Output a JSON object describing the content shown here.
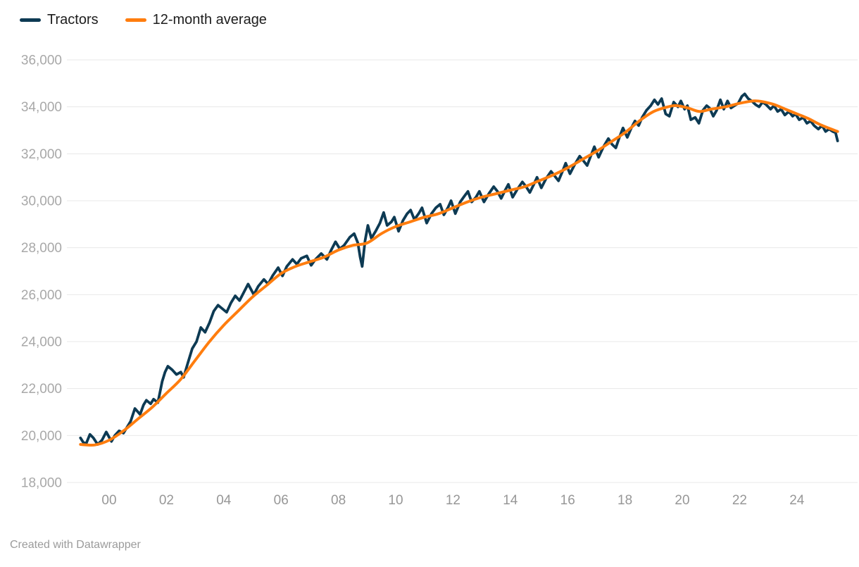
{
  "credit": "Created with Datawrapper",
  "chart_data": {
    "type": "line",
    "title": "",
    "xlabel": "",
    "ylabel": "",
    "legend_position": "top-left",
    "grid": "horizontal",
    "x_axis": {
      "tick_labels": [
        "00",
        "02",
        "04",
        "06",
        "08",
        "10",
        "12",
        "14",
        "16",
        "18",
        "20",
        "22",
        "24"
      ],
      "tick_years": [
        2000,
        2002,
        2004,
        2006,
        2008,
        2010,
        2012,
        2014,
        2016,
        2018,
        2020,
        2022,
        2024
      ],
      "range_years": [
        1999.0,
        2025.45
      ]
    },
    "y_axis": {
      "tick_labels": [
        "36,000",
        "34,000",
        "32,000",
        "30,000",
        "28,000",
        "26,000",
        "24,000",
        "22,000",
        "20,000",
        "18,000"
      ],
      "tick_values": [
        36000,
        34000,
        32000,
        30000,
        28000,
        26000,
        24000,
        22000,
        20000,
        18000
      ],
      "range": [
        18000,
        36000
      ]
    },
    "series": [
      {
        "name": "Tractors",
        "color": "#0d3a53",
        "stroke_width": 3.8,
        "smooth": false,
        "points": [
          [
            1999.0,
            19900
          ],
          [
            1999.1,
            19700
          ],
          [
            1999.2,
            19660
          ],
          [
            1999.33,
            20050
          ],
          [
            1999.45,
            19900
          ],
          [
            1999.6,
            19620
          ],
          [
            1999.75,
            19800
          ],
          [
            1999.9,
            20150
          ],
          [
            2000.08,
            19750
          ],
          [
            2000.2,
            20000
          ],
          [
            2000.35,
            20200
          ],
          [
            2000.5,
            20100
          ],
          [
            2000.6,
            20300
          ],
          [
            2000.75,
            20600
          ],
          [
            2000.9,
            21150
          ],
          [
            2001.08,
            20900
          ],
          [
            2001.2,
            21300
          ],
          [
            2001.3,
            21500
          ],
          [
            2001.45,
            21350
          ],
          [
            2001.55,
            21550
          ],
          [
            2001.7,
            21400
          ],
          [
            2001.85,
            22300
          ],
          [
            2001.95,
            22700
          ],
          [
            2002.05,
            22950
          ],
          [
            2002.2,
            22800
          ],
          [
            2002.35,
            22600
          ],
          [
            2002.5,
            22700
          ],
          [
            2002.6,
            22480
          ],
          [
            2002.75,
            23100
          ],
          [
            2002.9,
            23700
          ],
          [
            2003.05,
            24000
          ],
          [
            2003.2,
            24600
          ],
          [
            2003.35,
            24400
          ],
          [
            2003.5,
            24800
          ],
          [
            2003.65,
            25300
          ],
          [
            2003.8,
            25550
          ],
          [
            2003.95,
            25400
          ],
          [
            2004.1,
            25250
          ],
          [
            2004.25,
            25650
          ],
          [
            2004.4,
            25950
          ],
          [
            2004.55,
            25750
          ],
          [
            2004.7,
            26100
          ],
          [
            2004.85,
            26450
          ],
          [
            2005.05,
            26000
          ],
          [
            2005.2,
            26350
          ],
          [
            2005.4,
            26650
          ],
          [
            2005.55,
            26450
          ],
          [
            2005.7,
            26800
          ],
          [
            2005.9,
            27150
          ],
          [
            2006.05,
            26800
          ],
          [
            2006.2,
            27200
          ],
          [
            2006.4,
            27500
          ],
          [
            2006.55,
            27300
          ],
          [
            2006.7,
            27550
          ],
          [
            2006.9,
            27650
          ],
          [
            2007.05,
            27250
          ],
          [
            2007.2,
            27500
          ],
          [
            2007.4,
            27750
          ],
          [
            2007.6,
            27500
          ],
          [
            2007.75,
            27900
          ],
          [
            2007.9,
            28250
          ],
          [
            2008.05,
            27950
          ],
          [
            2008.2,
            28100
          ],
          [
            2008.4,
            28450
          ],
          [
            2008.55,
            28600
          ],
          [
            2008.68,
            28200
          ],
          [
            2008.76,
            27600
          ],
          [
            2008.83,
            27200
          ],
          [
            2008.93,
            28300
          ],
          [
            2009.03,
            28950
          ],
          [
            2009.15,
            28400
          ],
          [
            2009.3,
            28700
          ],
          [
            2009.45,
            29050
          ],
          [
            2009.58,
            29500
          ],
          [
            2009.7,
            28950
          ],
          [
            2009.85,
            29100
          ],
          [
            2009.95,
            29300
          ],
          [
            2010.1,
            28700
          ],
          [
            2010.25,
            29150
          ],
          [
            2010.4,
            29450
          ],
          [
            2010.52,
            29600
          ],
          [
            2010.65,
            29200
          ],
          [
            2010.8,
            29450
          ],
          [
            2010.92,
            29700
          ],
          [
            2011.08,
            29050
          ],
          [
            2011.25,
            29450
          ],
          [
            2011.4,
            29700
          ],
          [
            2011.55,
            29850
          ],
          [
            2011.68,
            29400
          ],
          [
            2011.82,
            29700
          ],
          [
            2011.93,
            30000
          ],
          [
            2012.08,
            29450
          ],
          [
            2012.25,
            29950
          ],
          [
            2012.4,
            30200
          ],
          [
            2012.52,
            30400
          ],
          [
            2012.65,
            29950
          ],
          [
            2012.8,
            30150
          ],
          [
            2012.92,
            30400
          ],
          [
            2013.08,
            29950
          ],
          [
            2013.25,
            30300
          ],
          [
            2013.42,
            30600
          ],
          [
            2013.55,
            30400
          ],
          [
            2013.68,
            30100
          ],
          [
            2013.82,
            30450
          ],
          [
            2013.93,
            30700
          ],
          [
            2014.08,
            30150
          ],
          [
            2014.25,
            30500
          ],
          [
            2014.42,
            30800
          ],
          [
            2014.55,
            30600
          ],
          [
            2014.68,
            30350
          ],
          [
            2014.82,
            30700
          ],
          [
            2014.93,
            31000
          ],
          [
            2015.08,
            30550
          ],
          [
            2015.25,
            30950
          ],
          [
            2015.42,
            31250
          ],
          [
            2015.55,
            31050
          ],
          [
            2015.68,
            30850
          ],
          [
            2015.82,
            31250
          ],
          [
            2015.93,
            31600
          ],
          [
            2016.08,
            31150
          ],
          [
            2016.25,
            31550
          ],
          [
            2016.42,
            31900
          ],
          [
            2016.55,
            31700
          ],
          [
            2016.68,
            31500
          ],
          [
            2016.82,
            31950
          ],
          [
            2016.93,
            32300
          ],
          [
            2017.08,
            31850
          ],
          [
            2017.25,
            32300
          ],
          [
            2017.42,
            32650
          ],
          [
            2017.55,
            32400
          ],
          [
            2017.68,
            32250
          ],
          [
            2017.82,
            32750
          ],
          [
            2017.93,
            33100
          ],
          [
            2018.08,
            32700
          ],
          [
            2018.22,
            33100
          ],
          [
            2018.35,
            33400
          ],
          [
            2018.48,
            33200
          ],
          [
            2018.6,
            33550
          ],
          [
            2018.75,
            33850
          ],
          [
            2018.9,
            34050
          ],
          [
            2019.03,
            34300
          ],
          [
            2019.15,
            34100
          ],
          [
            2019.28,
            34350
          ],
          [
            2019.42,
            33700
          ],
          [
            2019.55,
            33600
          ],
          [
            2019.7,
            34200
          ],
          [
            2019.85,
            34000
          ],
          [
            2019.95,
            34250
          ],
          [
            2020.08,
            33900
          ],
          [
            2020.18,
            34050
          ],
          [
            2020.3,
            33450
          ],
          [
            2020.45,
            33550
          ],
          [
            2020.58,
            33300
          ],
          [
            2020.72,
            33850
          ],
          [
            2020.85,
            34050
          ],
          [
            2020.95,
            33950
          ],
          [
            2021.08,
            33600
          ],
          [
            2021.2,
            33850
          ],
          [
            2021.33,
            34300
          ],
          [
            2021.45,
            33900
          ],
          [
            2021.58,
            34250
          ],
          [
            2021.7,
            33950
          ],
          [
            2021.82,
            34050
          ],
          [
            2021.95,
            34150
          ],
          [
            2022.08,
            34450
          ],
          [
            2022.18,
            34550
          ],
          [
            2022.3,
            34350
          ],
          [
            2022.42,
            34250
          ],
          [
            2022.55,
            34100
          ],
          [
            2022.68,
            34000
          ],
          [
            2022.8,
            34200
          ],
          [
            2022.92,
            34100
          ],
          [
            2023.08,
            33900
          ],
          [
            2023.2,
            34050
          ],
          [
            2023.33,
            33800
          ],
          [
            2023.45,
            33900
          ],
          [
            2023.58,
            33650
          ],
          [
            2023.72,
            33800
          ],
          [
            2023.85,
            33600
          ],
          [
            2023.95,
            33700
          ],
          [
            2024.08,
            33450
          ],
          [
            2024.22,
            33550
          ],
          [
            2024.35,
            33300
          ],
          [
            2024.48,
            33400
          ],
          [
            2024.6,
            33200
          ],
          [
            2024.75,
            33050
          ],
          [
            2024.88,
            33200
          ],
          [
            2025.0,
            32950
          ],
          [
            2025.12,
            33050
          ],
          [
            2025.25,
            32950
          ],
          [
            2025.35,
            32900
          ],
          [
            2025.42,
            32550
          ]
        ]
      },
      {
        "name": "12-month average",
        "color": "#ff7d0e",
        "stroke_width": 4,
        "smooth": true,
        "points": [
          [
            1999.0,
            19620
          ],
          [
            1999.5,
            19600
          ],
          [
            2000.0,
            19800
          ],
          [
            2000.5,
            20200
          ],
          [
            2001.0,
            20700
          ],
          [
            2001.5,
            21200
          ],
          [
            2002.0,
            21800
          ],
          [
            2002.5,
            22400
          ],
          [
            2003.0,
            23200
          ],
          [
            2003.5,
            24000
          ],
          [
            2004.0,
            24700
          ],
          [
            2004.5,
            25300
          ],
          [
            2005.0,
            25900
          ],
          [
            2005.5,
            26400
          ],
          [
            2006.0,
            26900
          ],
          [
            2006.5,
            27200
          ],
          [
            2007.0,
            27400
          ],
          [
            2007.5,
            27600
          ],
          [
            2008.0,
            27900
          ],
          [
            2008.5,
            28100
          ],
          [
            2009.0,
            28200
          ],
          [
            2009.5,
            28600
          ],
          [
            2010.0,
            28900
          ],
          [
            2010.5,
            29100
          ],
          [
            2011.0,
            29300
          ],
          [
            2011.5,
            29450
          ],
          [
            2012.0,
            29700
          ],
          [
            2012.5,
            29950
          ],
          [
            2013.0,
            30150
          ],
          [
            2013.5,
            30300
          ],
          [
            2014.0,
            30450
          ],
          [
            2014.5,
            30600
          ],
          [
            2015.0,
            30850
          ],
          [
            2015.5,
            31100
          ],
          [
            2016.0,
            31400
          ],
          [
            2016.5,
            31750
          ],
          [
            2017.0,
            32100
          ],
          [
            2017.5,
            32500
          ],
          [
            2018.0,
            32900
          ],
          [
            2018.5,
            33400
          ],
          [
            2019.0,
            33800
          ],
          [
            2019.5,
            34000
          ],
          [
            2019.8,
            34050
          ],
          [
            2020.2,
            33950
          ],
          [
            2020.6,
            33800
          ],
          [
            2021.0,
            33900
          ],
          [
            2021.5,
            34000
          ],
          [
            2022.0,
            34150
          ],
          [
            2022.5,
            34250
          ],
          [
            2022.8,
            34220
          ],
          [
            2023.2,
            34100
          ],
          [
            2023.6,
            33900
          ],
          [
            2024.0,
            33700
          ],
          [
            2024.4,
            33500
          ],
          [
            2024.8,
            33250
          ],
          [
            2025.2,
            33050
          ],
          [
            2025.42,
            32950
          ]
        ]
      }
    ]
  }
}
